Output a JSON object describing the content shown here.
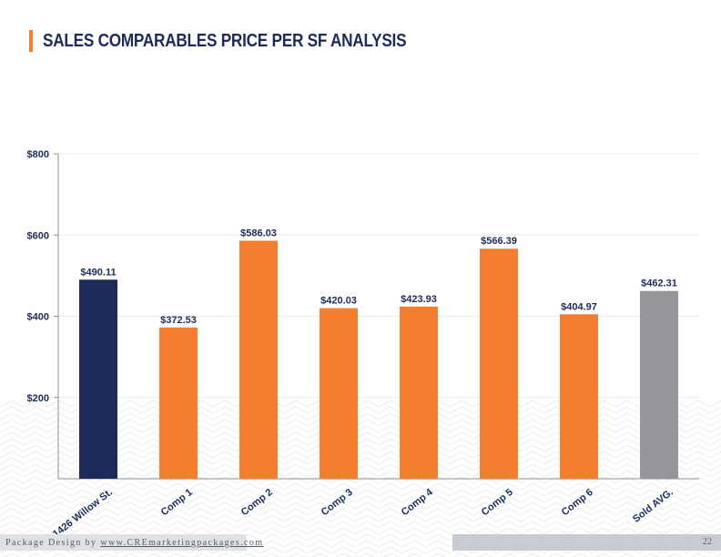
{
  "page": {
    "title": "SALES COMPARABLES PRICE PER SF ANALYSIS",
    "footer_prefix": "Package Design by ",
    "footer_link": "www.CREmarketingpackages.com",
    "page_number": "22"
  },
  "colors": {
    "accent": "#f47e2f",
    "navy": "#1d2b58",
    "gray": "#939598",
    "axis_text": "#1d2b58"
  },
  "chart_data": {
    "type": "bar",
    "title": "",
    "xlabel": "",
    "ylabel": "",
    "ylim": [
      0,
      800
    ],
    "yticks": [
      200,
      400,
      600,
      800
    ],
    "ytick_labels": [
      "$200",
      "$400",
      "$600",
      "$800"
    ],
    "grid": true,
    "categories": [
      "1426 Willow St.",
      "Comp 1",
      "Comp 2",
      "Comp 3",
      "Comp 4",
      "Comp 5",
      "Comp 6",
      "Sold AVG."
    ],
    "values": [
      490.11,
      372.53,
      586.03,
      420.03,
      423.93,
      566.39,
      404.97,
      462.31
    ],
    "data_labels": [
      "$490.11",
      "$372.53",
      "$586.03",
      "$420.03",
      "$423.93",
      "$566.39",
      "$404.97",
      "$462.31"
    ],
    "bar_colors": [
      "#1d2b58",
      "#f47e2f",
      "#f47e2f",
      "#f47e2f",
      "#f47e2f",
      "#f47e2f",
      "#f47e2f",
      "#939598"
    ]
  }
}
